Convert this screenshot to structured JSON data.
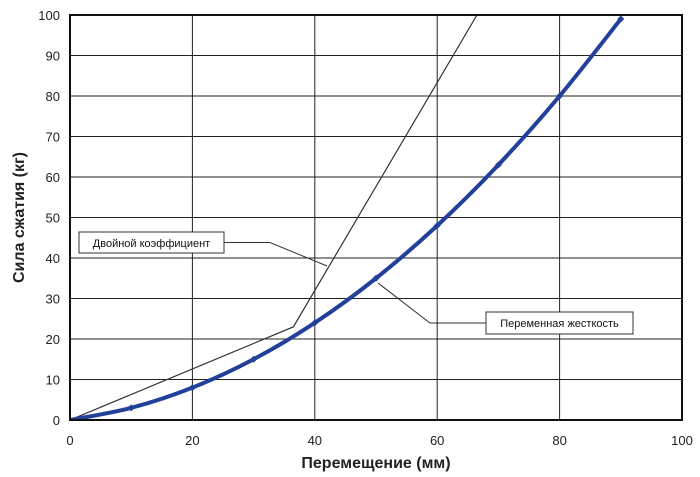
{
  "chart_data": {
    "type": "line",
    "title": "",
    "xlabel": "Перемещение (мм)",
    "ylabel": "Сила сжатия (кг)",
    "xlim": [
      0,
      100
    ],
    "ylim": [
      0,
      100
    ],
    "x_ticks": [
      0,
      20,
      40,
      60,
      80,
      100
    ],
    "y_ticks": [
      0,
      10,
      20,
      30,
      40,
      50,
      60,
      70,
      80,
      90,
      100
    ],
    "grid": true,
    "series": [
      {
        "name": "Двойной коэффициент",
        "color": "#333333",
        "marker": "none",
        "x": [
          0,
          36.5,
          66.5
        ],
        "y": [
          0,
          23,
          100
        ]
      },
      {
        "name": "Переменная жесткость",
        "color": "#22409a",
        "marker": "diamond",
        "x": [
          0,
          10,
          20,
          30,
          40,
          50,
          60,
          70,
          80,
          90
        ],
        "y": [
          0,
          3,
          8,
          15,
          24,
          35,
          48,
          63,
          80,
          99
        ]
      }
    ],
    "annotations": [
      {
        "text": "Двойной коэффициент",
        "series": 0
      },
      {
        "text": "Переменная жесткость",
        "series": 1
      }
    ]
  }
}
